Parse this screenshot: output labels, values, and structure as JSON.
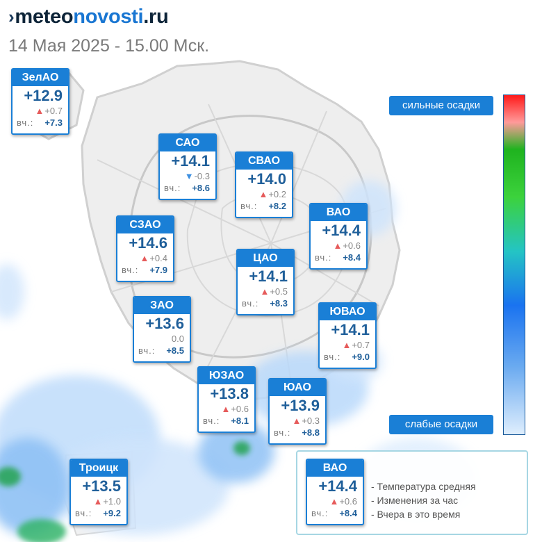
{
  "header": {
    "logo_parts": [
      "meteo",
      "novosti",
      ".ru"
    ],
    "datetime": "14 Мая 2025 - 15.00 Мск."
  },
  "map": {
    "icon": "map-background",
    "districts": [
      {
        "name": "ЗелАО",
        "temp": "+12.9",
        "delta": "+0.7",
        "trend": "up",
        "yesterday_label": "вч.:",
        "yesterday": "+7.3"
      },
      {
        "name": "САО",
        "temp": "+14.1",
        "delta": "-0.3",
        "trend": "down",
        "yesterday_label": "вч.:",
        "yesterday": "+8.6"
      },
      {
        "name": "СВАО",
        "temp": "+14.0",
        "delta": "+0.2",
        "trend": "up",
        "yesterday_label": "вч.:",
        "yesterday": "+8.2"
      },
      {
        "name": "ВАО",
        "temp": "+14.4",
        "delta": "+0.6",
        "trend": "up",
        "yesterday_label": "вч.:",
        "yesterday": "+8.4"
      },
      {
        "name": "СЗАО",
        "temp": "+14.6",
        "delta": "+0.4",
        "trend": "up",
        "yesterday_label": "вч.:",
        "yesterday": "+7.9"
      },
      {
        "name": "ЦАО",
        "temp": "+14.1",
        "delta": "+0.5",
        "trend": "up",
        "yesterday_label": "вч.:",
        "yesterday": "+8.3"
      },
      {
        "name": "ЗАО",
        "temp": "+13.6",
        "delta": "0.0",
        "trend": "none",
        "yesterday_label": "вч.:",
        "yesterday": "+8.5"
      },
      {
        "name": "ЮВАО",
        "temp": "+14.1",
        "delta": "+0.7",
        "trend": "up",
        "yesterday_label": "вч.:",
        "yesterday": "+9.0"
      },
      {
        "name": "ЮЗАО",
        "temp": "+13.8",
        "delta": "+0.6",
        "trend": "up",
        "yesterday_label": "вч.:",
        "yesterday": "+8.1"
      },
      {
        "name": "ЮАО",
        "temp": "+13.9",
        "delta": "+0.3",
        "trend": "up",
        "yesterday_label": "вч.:",
        "yesterday": "+8.8"
      },
      {
        "name": "Троицк",
        "temp": "+13.5",
        "delta": "+1.0",
        "trend": "up",
        "yesterday_label": "вч.:",
        "yesterday": "+9.2"
      }
    ]
  },
  "precip_scale": {
    "top_label": "сильные осадки",
    "bottom_label": "слабые осадки",
    "colors": [
      "#ff1a1a",
      "#ff9a9a",
      "#1fb31f",
      "#3cd23c",
      "#24c4c4",
      "#1a73f0",
      "#6aaaf0",
      "#dfeefd"
    ]
  },
  "legend": {
    "sample": {
      "name": "ВАО",
      "temp": "+14.4",
      "delta": "+0.6",
      "trend": "up",
      "yesterday_label": "вч.:",
      "yesterday": "+8.4"
    },
    "lines": [
      "- Температура средняя",
      "- Изменения за час",
      "- Вчера в это время"
    ]
  }
}
